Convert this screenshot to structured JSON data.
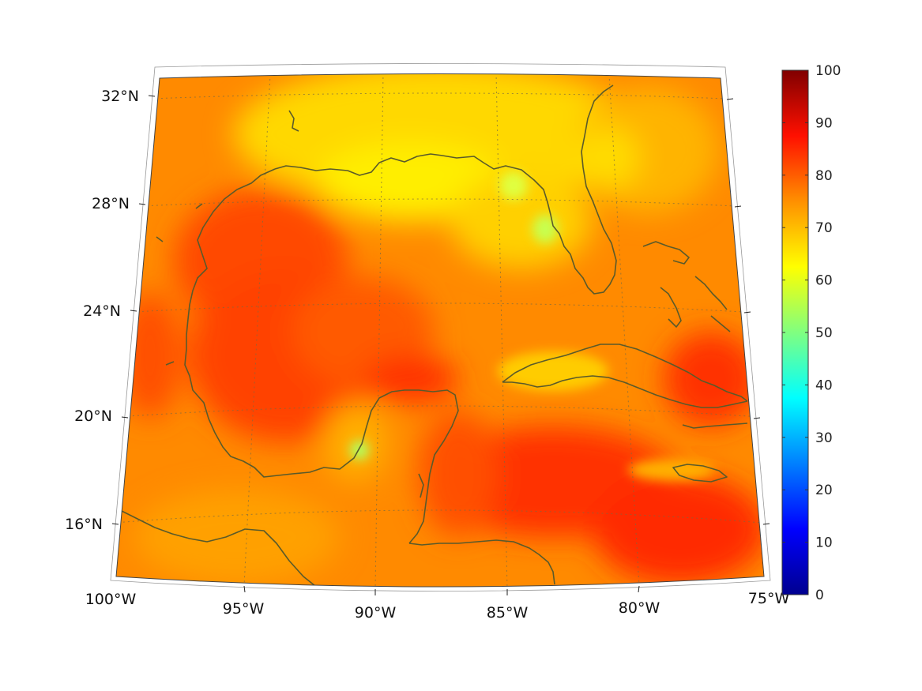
{
  "map": {
    "region": "Gulf of Mexico and Caribbean",
    "projection": "conic",
    "lat_labels": [
      "32°N",
      "28°N",
      "24°N",
      "20°N",
      "16°N"
    ],
    "lon_labels": [
      "100°W",
      "95°W",
      "90°W",
      "85°W",
      "80°W",
      "75°W"
    ],
    "lat_values": [
      32,
      28,
      24,
      20,
      16
    ],
    "lon_values": [
      -100,
      -95,
      -90,
      -85,
      -80,
      -75
    ],
    "extent": {
      "lon": [
        -100,
        -75
      ],
      "lat": [
        14,
        33
      ]
    },
    "graticule": "dotted",
    "coastline_color": "#5a5a2a"
  },
  "colorbar": {
    "ticks": [
      "0",
      "10",
      "20",
      "30",
      "40",
      "50",
      "60",
      "70",
      "80",
      "90",
      "100"
    ],
    "range": [
      0,
      100
    ],
    "colormap": "jet",
    "stops": [
      "#00008f",
      "#0000ff",
      "#0080ff",
      "#00ffff",
      "#80ff80",
      "#ffff00",
      "#ff8000",
      "#ff0000",
      "#800000"
    ]
  },
  "field": {
    "typical_value": 72,
    "open_gulf_value": 80,
    "coastal_low_value": 55
  }
}
